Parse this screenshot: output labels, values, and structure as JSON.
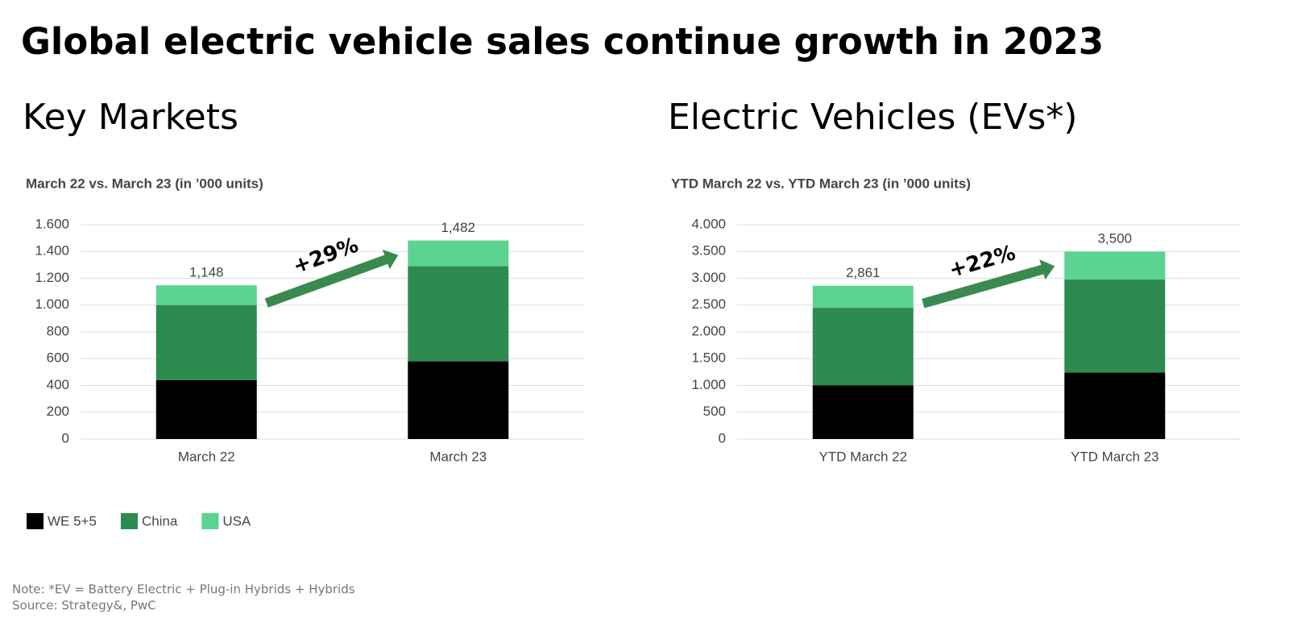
{
  "title": "Global electric vehicle sales continue growth in 2023",
  "note": "Note: *EV = Battery Electric + Plug-in Hybrids + Hybrids",
  "source": "Source: Strategy&, PwC",
  "chart_data": [
    {
      "type": "bar",
      "stacked": true,
      "heading": "Key Markets",
      "title": "March 22 vs. March 23 (in ’000 units)",
      "categories": [
        "March 22",
        "March 23"
      ],
      "series": [
        {
          "name": "WE 5+5",
          "color": "#000000",
          "values": [
            440,
            580
          ]
        },
        {
          "name": "China",
          "color": "#2e8b50",
          "values": [
            560,
            710
          ]
        },
        {
          "name": "USA",
          "color": "#5cd391",
          "values": [
            148,
            192
          ]
        }
      ],
      "totals": [
        1148,
        1482
      ],
      "total_labels": [
        "1,148",
        "1,482"
      ],
      "annotation": "+29%",
      "ylim": [
        0,
        1600
      ],
      "yticks": [
        0,
        200,
        400,
        600,
        800,
        {
          "value": 1000,
          "label": "1.000"
        },
        {
          "value": 1200,
          "label": "1.200"
        },
        {
          "value": 1400,
          "label": "1.400"
        },
        {
          "value": 1600,
          "label": "1.600"
        }
      ],
      "grid": true
    },
    {
      "type": "bar",
      "stacked": true,
      "heading": "Electric Vehicles (EVs*)",
      "title": "YTD March 22 vs. YTD March 23 (in ’000 units)",
      "categories": [
        "YTD March 22",
        "YTD March 23"
      ],
      "series": [
        {
          "color": "#000000",
          "values": [
            1000,
            1240
          ]
        },
        {
          "color": "#2e8b50",
          "values": [
            1450,
            1740
          ]
        },
        {
          "color": "#5cd391",
          "values": [
            411,
            520
          ]
        }
      ],
      "totals": [
        2861,
        3500
      ],
      "total_labels": [
        "2,861",
        "3,500"
      ],
      "annotation": "+22%",
      "ylim": [
        0,
        4000
      ],
      "yticks": [
        0,
        500,
        {
          "value": 1000,
          "label": "1.000"
        },
        {
          "value": 1500,
          "label": "1.500"
        },
        {
          "value": 2000,
          "label": "2.000"
        },
        {
          "value": 2500,
          "label": "2.500"
        },
        {
          "value": 3000,
          "label": "3.000"
        },
        {
          "value": 3500,
          "label": "3.500"
        },
        {
          "value": 4000,
          "label": "4.000"
        }
      ],
      "grid": true
    }
  ]
}
